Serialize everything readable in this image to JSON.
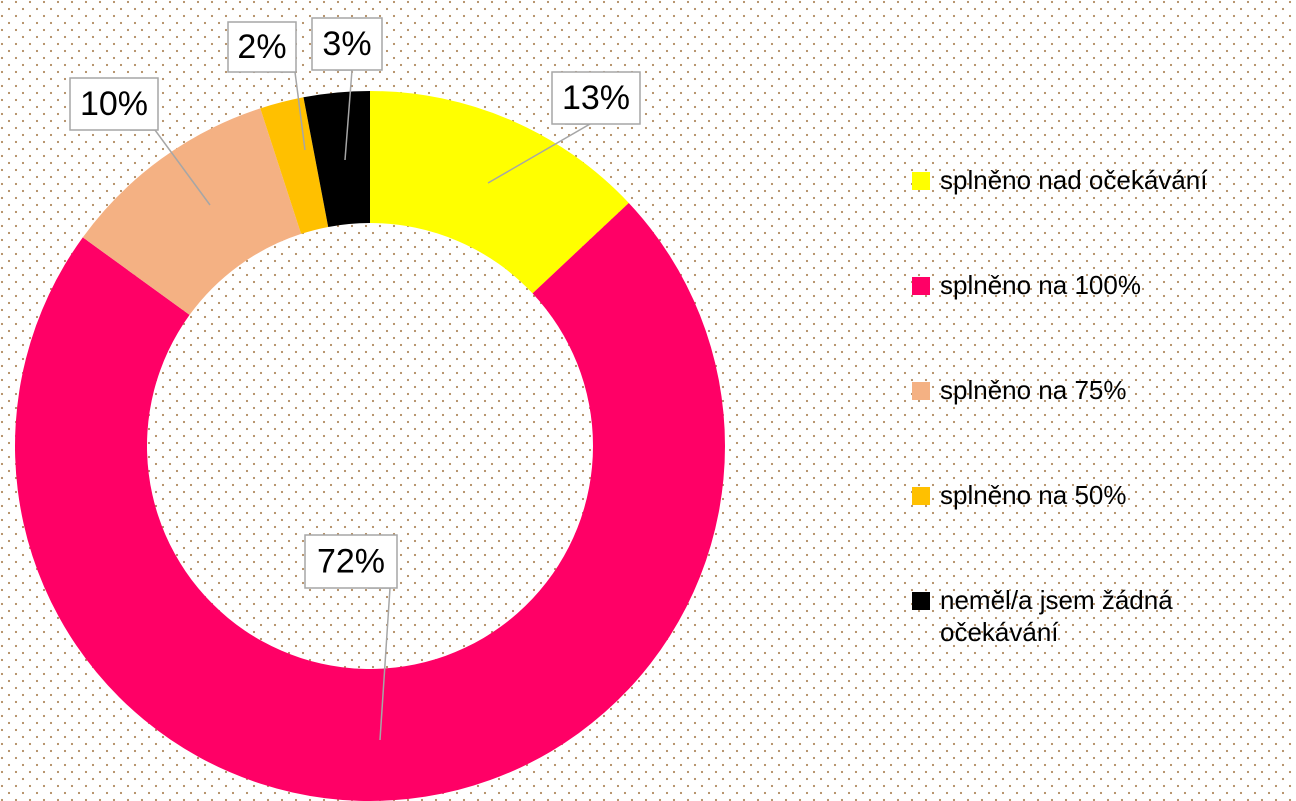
{
  "chart_data": {
    "type": "donut",
    "categories": [
      "splněno nad očekávání",
      "splněno na 100%",
      "splněno na 75%",
      "splněno na 50%",
      "neměl/a jsem žádná očekávání"
    ],
    "values": [
      13,
      72,
      10,
      2,
      3
    ],
    "value_labels": [
      "13%",
      "72%",
      "10%",
      "2%",
      "3%"
    ],
    "colors": [
      "#ffff00",
      "#ff0066",
      "#f4b183",
      "#ffc000",
      "#000000"
    ],
    "legend": "right"
  }
}
